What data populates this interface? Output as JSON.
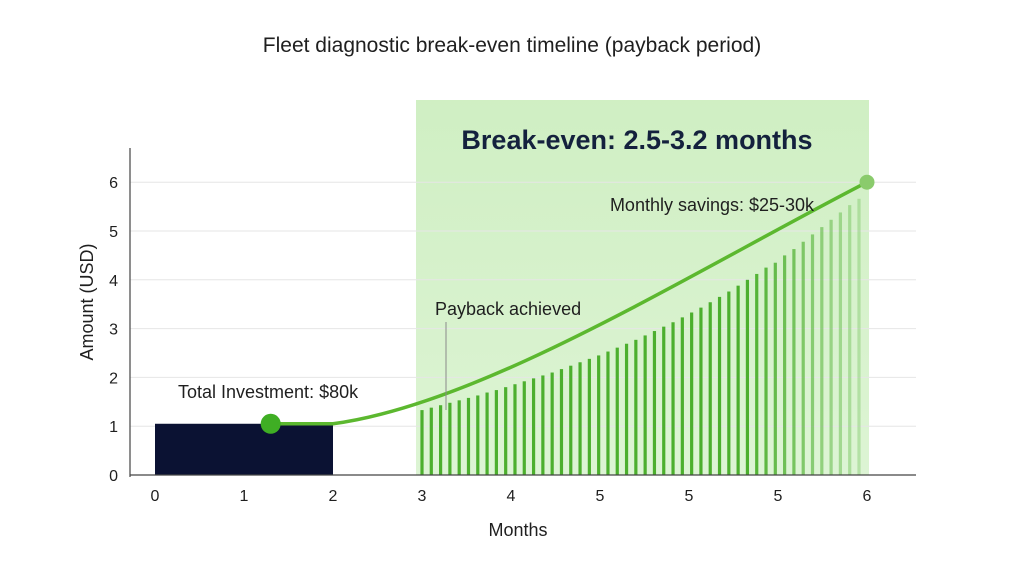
{
  "chart_data": {
    "type": "bar",
    "title": "Fleet diagnostic break-even timeline (payback period)",
    "xlabel": "Months",
    "ylabel": "Amount (USD)",
    "x_tick_labels": [
      "0",
      "1",
      "2",
      "3",
      "4",
      "5",
      "5",
      "5",
      "6"
    ],
    "y_tick_labels": [
      "0",
      "1",
      "2",
      "3",
      "4",
      "5",
      "6"
    ],
    "ylim": [
      0,
      6
    ],
    "grid": true,
    "investment": {
      "label": "Total Investment: $80k",
      "value": 1.05,
      "x_start_index": 0,
      "x_end_index": 2,
      "color": "#0b1233"
    },
    "savings_bars": {
      "color": "#4caf2e",
      "x_start_index": 3,
      "x_end_index": 8,
      "values": [
        1.33,
        1.38,
        1.43,
        1.48,
        1.53,
        1.58,
        1.63,
        1.69,
        1.74,
        1.8,
        1.86,
        1.92,
        1.98,
        2.04,
        2.1,
        2.17,
        2.24,
        2.31,
        2.38,
        2.45,
        2.53,
        2.61,
        2.69,
        2.77,
        2.86,
        2.95,
        3.04,
        3.13,
        3.23,
        3.33,
        3.43,
        3.54,
        3.65,
        3.76,
        3.88,
        4.0,
        4.12,
        4.25,
        4.35,
        4.5,
        4.63,
        4.78,
        4.93,
        5.08,
        5.23,
        5.38,
        5.53,
        5.66
      ]
    },
    "cumulative_line": {
      "color": "#5cb82f",
      "start_point": {
        "x_index": 1.3,
        "y": 1.05
      },
      "end_point": {
        "x_index": 8,
        "y": 6.0
      }
    },
    "break_even_region": {
      "x_start_index": 3,
      "x_end_index": 8,
      "color": "#c9ecbb",
      "headline": "Break-even: 2.5-3.2 months"
    },
    "annotations": {
      "monthly_savings": "Monthly savings: $25-30k",
      "payback": "Payback achieved"
    }
  }
}
